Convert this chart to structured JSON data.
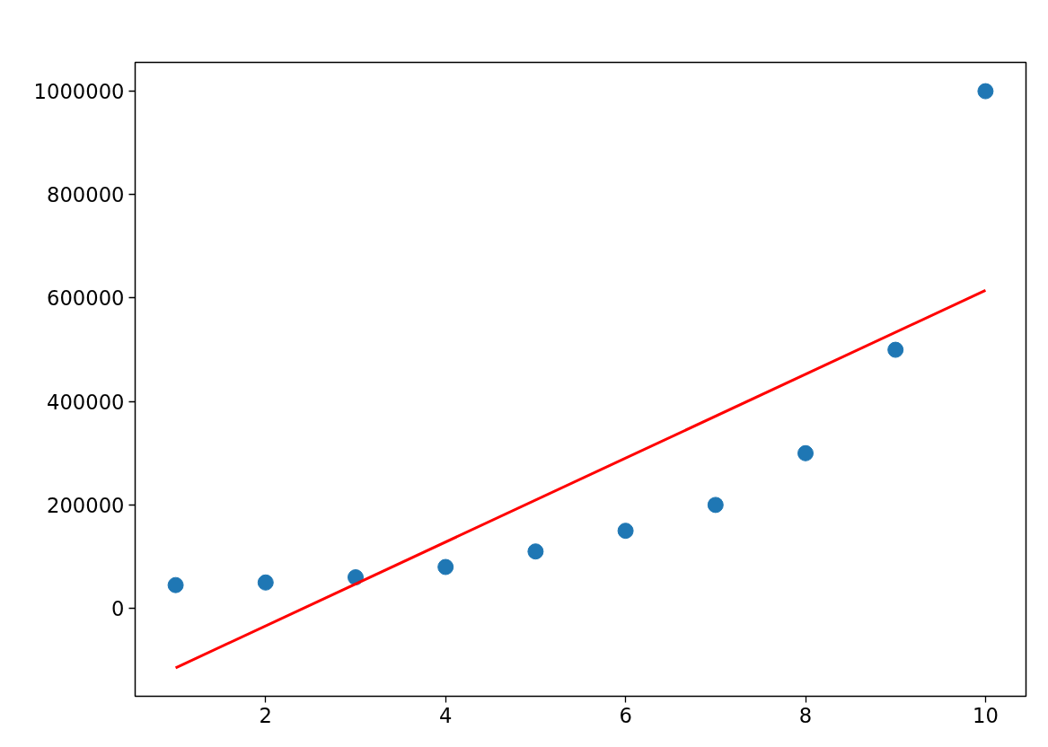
{
  "chart_data": {
    "type": "scatter",
    "xlim": [
      0.55,
      10.45
    ],
    "ylim": [
      -170000,
      1055700
    ],
    "xticks": [
      2,
      4,
      6,
      8,
      10
    ],
    "yticks": [
      0,
      200000,
      400000,
      600000,
      800000,
      1000000
    ],
    "grid": false,
    "series": [
      {
        "marker": "circle",
        "color": "#1f77b4",
        "x": [
          1,
          2,
          3,
          4,
          5,
          6,
          7,
          8,
          9,
          10
        ],
        "values": [
          45000,
          50000,
          60000,
          80000,
          110000,
          150000,
          200000,
          300000,
          500000,
          1000000
        ]
      },
      {
        "type": "line",
        "marker": "none",
        "color": "#ff0000",
        "x": [
          1,
          10
        ],
        "values": [
          -115000,
          615000
        ]
      }
    ]
  }
}
